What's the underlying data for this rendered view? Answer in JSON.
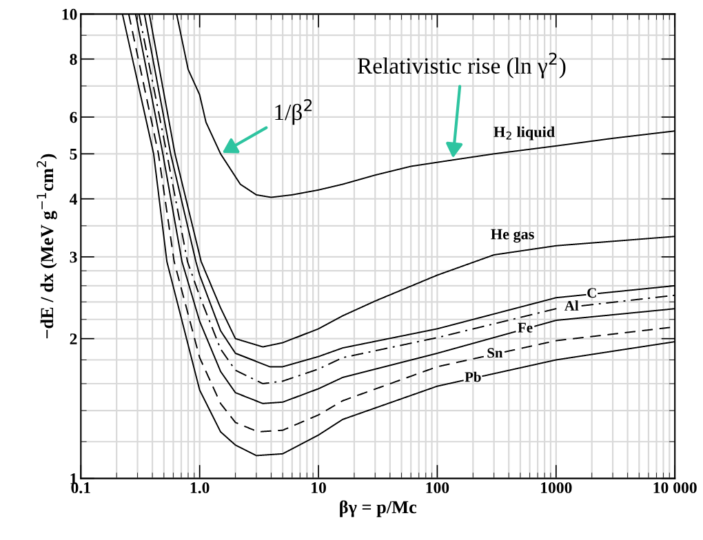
{
  "chart_data": {
    "type": "line",
    "xlabel": "βγ = p/Mc",
    "ylabel": "−dE / dx (MeV g$^{−1}$cm$^{2}$)",
    "log": "xy",
    "grid": true,
    "legend": false,
    "marker": "none",
    "xlim": [
      0.1,
      10000
    ],
    "ylim": [
      1,
      10
    ],
    "xticks": [
      0.1,
      {
        "value": 1,
        "label": "1.0"
      },
      10,
      100,
      1000,
      {
        "value": 10000,
        "label": "10 000"
      }
    ],
    "yticks": [
      1,
      2,
      3,
      4,
      5,
      6,
      8,
      10
    ],
    "series": [
      {
        "name": "H$_{2}$ liquid",
        "color": "#000000",
        "line_style": "solid",
        "x": [
          0.64,
          0.8,
          1.0,
          1.13,
          1.5,
          2.2,
          3,
          4,
          6,
          10,
          16,
          30,
          60,
          135,
          300,
          1000,
          3000,
          10000
        ],
        "values": [
          10,
          7.6,
          6.7,
          5.85,
          5.0,
          4.3,
          4.08,
          4.03,
          4.08,
          4.18,
          4.3,
          4.5,
          4.7,
          4.85,
          5.0,
          5.2,
          5.4,
          5.6
        ]
      },
      {
        "name": "He gas",
        "color": "#000000",
        "line_style": "solid",
        "x": [
          0.377,
          0.62,
          1.03,
          1.5,
          2,
          3.4,
          5,
          10,
          16,
          30,
          100,
          300,
          1000,
          10000
        ],
        "values": [
          10,
          5,
          2.93,
          2.33,
          2.0,
          1.92,
          1.96,
          2.1,
          2.24,
          2.41,
          2.74,
          3.03,
          3.17,
          3.32
        ]
      },
      {
        "name": "C",
        "color": "#000000",
        "line_style": "solid",
        "x": [
          0.343,
          0.57,
          0.93,
          1.0,
          1.5,
          2,
          3.9,
          5,
          10,
          16,
          100,
          1000,
          10000
        ],
        "values": [
          10,
          5,
          2.93,
          2.74,
          2.08,
          1.86,
          1.74,
          1.74,
          1.83,
          1.91,
          2.1,
          2.45,
          2.6
        ]
      },
      {
        "name": "Al",
        "color": "#000000",
        "line_style": "dashdot",
        "x": [
          0.309,
          0.53,
          0.79,
          1.0,
          1.5,
          2,
          3.4,
          5,
          10,
          16,
          100,
          1000,
          10000
        ],
        "values": [
          10,
          5,
          2.93,
          2.47,
          1.9,
          1.71,
          1.6,
          1.62,
          1.72,
          1.82,
          2.01,
          2.32,
          2.48
        ]
      },
      {
        "name": "Fe",
        "color": "#000000",
        "line_style": "solid",
        "x": [
          0.289,
          0.49,
          0.71,
          1.0,
          1.5,
          2,
          3.4,
          5,
          10,
          16,
          100,
          1000,
          10000
        ],
        "values": [
          10,
          5,
          2.93,
          2.18,
          1.7,
          1.53,
          1.45,
          1.46,
          1.56,
          1.65,
          1.86,
          2.19,
          2.32
        ]
      },
      {
        "name": "Sn",
        "color": "#000000",
        "line_style": "dashed",
        "x": [
          0.253,
          0.45,
          0.61,
          1.0,
          1.5,
          2,
          3.1,
          5,
          10,
          16,
          100,
          1000,
          10000
        ],
        "values": [
          10,
          5,
          2.93,
          1.82,
          1.45,
          1.32,
          1.26,
          1.27,
          1.37,
          1.47,
          1.74,
          1.98,
          2.12
        ]
      },
      {
        "name": "Pb",
        "color": "#000000",
        "line_style": "solid",
        "x": [
          0.224,
          0.41,
          0.53,
          1.0,
          1.5,
          2,
          3.0,
          5,
          10,
          16,
          100,
          1000,
          10000
        ],
        "values": [
          10,
          5,
          2.93,
          1.55,
          1.26,
          1.18,
          1.12,
          1.13,
          1.24,
          1.34,
          1.58,
          1.8,
          1.97
        ]
      }
    ],
    "annotations": [
      {
        "text": "1/β$^{2}$",
        "x": 1.5,
        "y": 5.0
      },
      {
        "text": "Relativistic rise (ln γ$^{2}$)",
        "x": 135,
        "y": 4.85
      }
    ]
  }
}
